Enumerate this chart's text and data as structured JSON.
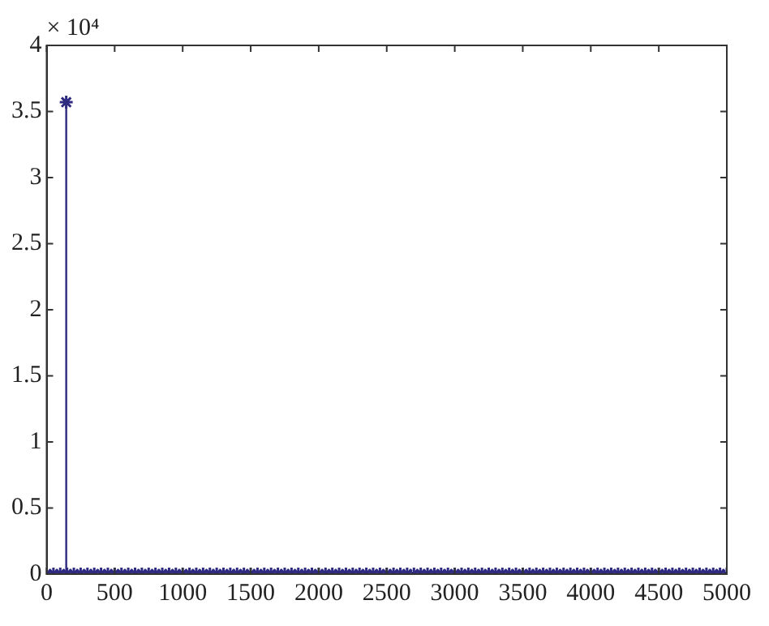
{
  "chart_data": {
    "type": "lollipop",
    "annotations": [
      "× 10⁴"
    ],
    "x": [
      0,
      50,
      100,
      144,
      150,
      200,
      250,
      300,
      350,
      400,
      450,
      500,
      550,
      600,
      650,
      700,
      750,
      800,
      850,
      900,
      950,
      1000,
      1050,
      1100,
      1150,
      1200,
      1250,
      1300,
      1350,
      1400,
      1450,
      1500,
      1550,
      1600,
      1650,
      1700,
      1750,
      1800,
      1850,
      1900,
      1950,
      2000,
      2050,
      2100,
      2150,
      2200,
      2250,
      2300,
      2350,
      2400,
      2450,
      2500,
      2550,
      2600,
      2650,
      2700,
      2750,
      2800,
      2850,
      2900,
      2950,
      3000,
      3050,
      3100,
      3150,
      3200,
      3250,
      3300,
      3350,
      3400,
      3450,
      3500,
      3550,
      3600,
      3650,
      3700,
      3750,
      3800,
      3850,
      3900,
      3950,
      4000,
      4050,
      4100,
      4150,
      4200,
      4250,
      4300,
      4350,
      4400,
      4450,
      4500,
      4550,
      4600,
      4650,
      4700,
      4750,
      4800,
      4850,
      4900,
      4950,
      5000
    ],
    "values": [
      0,
      0,
      0,
      3.57,
      0,
      0,
      0,
      0,
      0,
      0,
      0,
      0,
      0,
      0,
      0,
      0,
      0,
      0,
      0,
      0,
      0,
      0,
      0,
      0,
      0,
      0,
      0,
      0,
      0,
      0,
      0,
      0,
      0,
      0,
      0,
      0,
      0,
      0,
      0,
      0,
      0,
      0,
      0,
      0,
      0,
      0,
      0,
      0,
      0,
      0,
      0,
      0,
      0,
      0,
      0,
      0,
      0,
      0,
      0,
      0,
      0,
      0,
      0,
      0,
      0,
      0,
      0,
      0,
      0,
      0,
      0,
      0,
      0,
      0,
      0,
      0,
      0,
      0,
      0,
      0,
      0,
      0,
      0,
      0,
      0,
      0,
      0,
      0,
      0,
      0,
      0,
      0,
      0,
      0,
      0,
      0,
      0,
      0,
      0,
      0,
      0,
      0
    ],
    "color": "#2e2a80",
    "marker": "cross",
    "grid": false,
    "legend": false,
    "xlim": [
      0,
      5000
    ],
    "xticks": [
      0,
      500,
      1000,
      1500,
      2000,
      2500,
      3000,
      3500,
      4000,
      4500,
      5000
    ],
    "ylim": [
      0,
      4
    ],
    "yticks": [
      0,
      0.5,
      1,
      1.5,
      2,
      2.5,
      3,
      3.5,
      4
    ]
  }
}
